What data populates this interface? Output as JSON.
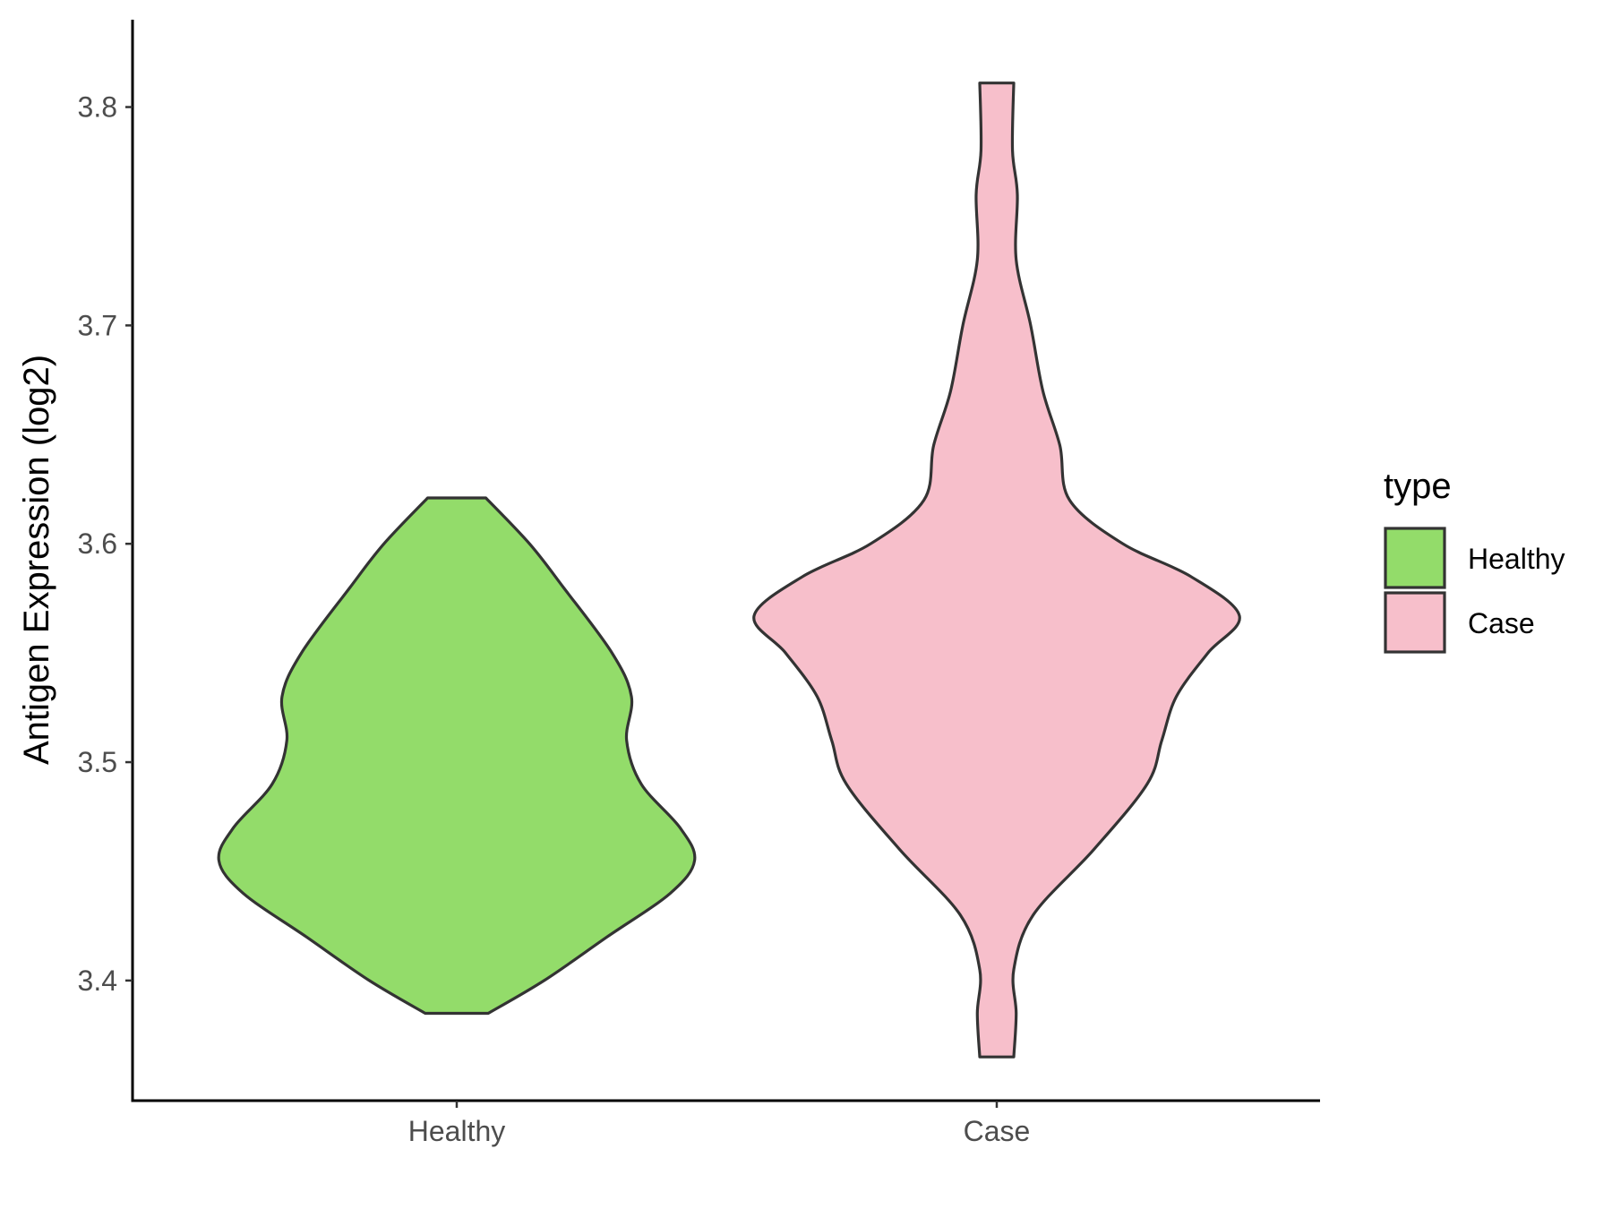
{
  "chart_data": {
    "type": "violin",
    "ylabel": "Antigen Expression (log2)",
    "xlabel": "",
    "ylim": [
      3.345,
      3.84
    ],
    "yticks": [
      3.4,
      3.5,
      3.6,
      3.7,
      3.8
    ],
    "ytick_labels": [
      "3.4",
      "3.5",
      "3.6",
      "3.7",
      "3.8"
    ],
    "categories": [
      "Healthy",
      "Case"
    ],
    "legend": {
      "title": "type",
      "position": "right",
      "entries": [
        "Healthy",
        "Case"
      ]
    },
    "grid": false,
    "colors": {
      "Healthy": "#93dc6a",
      "Case": "#f7bfcb",
      "outline": "#333333"
    },
    "series": [
      {
        "name": "Healthy",
        "min": 3.385,
        "max": 3.621,
        "density": [
          [
            3.385,
            0.13
          ],
          [
            3.4,
            0.36
          ],
          [
            3.42,
            0.62
          ],
          [
            3.44,
            0.88
          ],
          [
            3.455,
            0.98
          ],
          [
            3.47,
            0.92
          ],
          [
            3.49,
            0.76
          ],
          [
            3.51,
            0.7
          ],
          [
            3.53,
            0.72
          ],
          [
            3.55,
            0.64
          ],
          [
            3.58,
            0.44
          ],
          [
            3.6,
            0.3
          ],
          [
            3.621,
            0.12
          ]
        ]
      },
      {
        "name": "Case",
        "min": 3.365,
        "max": 3.811,
        "density": [
          [
            3.365,
            0.07
          ],
          [
            3.385,
            0.08
          ],
          [
            3.405,
            0.07
          ],
          [
            3.43,
            0.15
          ],
          [
            3.46,
            0.4
          ],
          [
            3.49,
            0.62
          ],
          [
            3.51,
            0.68
          ],
          [
            3.53,
            0.74
          ],
          [
            3.55,
            0.87
          ],
          [
            3.567,
            1.0
          ],
          [
            3.585,
            0.8
          ],
          [
            3.6,
            0.52
          ],
          [
            3.62,
            0.3
          ],
          [
            3.645,
            0.26
          ],
          [
            3.67,
            0.19
          ],
          [
            3.7,
            0.14
          ],
          [
            3.73,
            0.08
          ],
          [
            3.76,
            0.085
          ],
          [
            3.78,
            0.065
          ],
          [
            3.811,
            0.07
          ]
        ]
      }
    ]
  }
}
